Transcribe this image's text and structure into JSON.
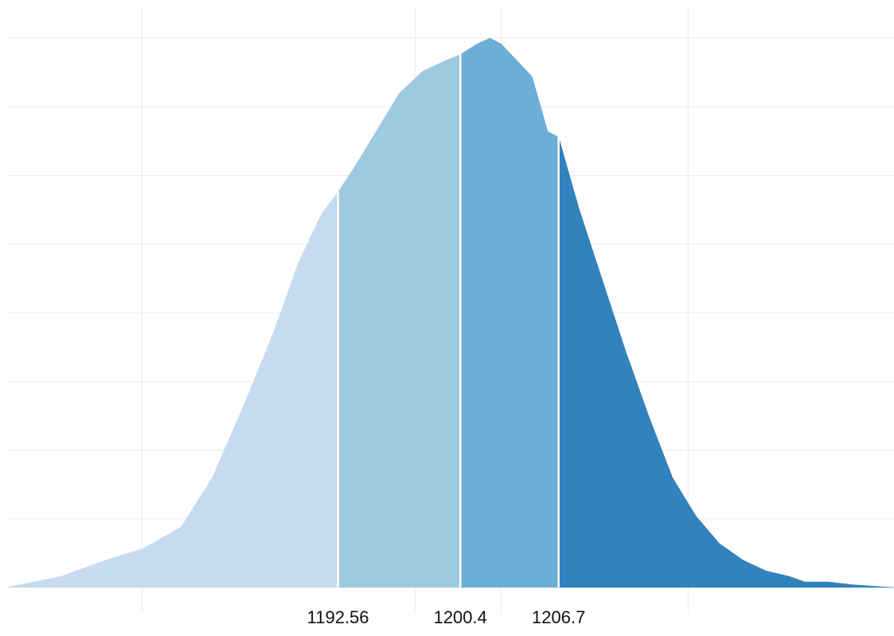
{
  "chart_data": {
    "type": "area",
    "title": "",
    "xlabel": "",
    "ylabel": "",
    "x_range": [
      1171.3,
      1228.2
    ],
    "y_range": [
      0,
      1
    ],
    "grid": true,
    "vertical_grid_x": [
      1180,
      1197.5,
      1203,
      1215
    ],
    "horizontal_grid_y": [
      0.125,
      0.25,
      0.375,
      0.5,
      0.625,
      0.75,
      0.875,
      1.0
    ],
    "breakpoints": [
      {
        "value": 1192.56,
        "label": "1192.56"
      },
      {
        "value": 1200.4,
        "label": "1200.4"
      },
      {
        "value": 1206.7,
        "label": "1206.7"
      }
    ],
    "segments": [
      {
        "from": 1171.3,
        "to": 1192.56,
        "color": "#c6dbef"
      },
      {
        "from": 1192.56,
        "to": 1200.4,
        "color": "#9ecae1"
      },
      {
        "from": 1200.4,
        "to": 1206.7,
        "color": "#6baed6"
      },
      {
        "from": 1206.7,
        "to": 1228.2,
        "color": "#3182bd"
      }
    ],
    "density": {
      "x": [
        1171.3,
        1174.8,
        1177.7,
        1180.0,
        1182.5,
        1184.5,
        1186.5,
        1188.5,
        1190.0,
        1191.5,
        1192.56,
        1193.5,
        1195.0,
        1196.5,
        1198.0,
        1199.5,
        1200.4,
        1201.5,
        1202.3,
        1203.0,
        1204.0,
        1205.0,
        1206.0,
        1206.7,
        1208.0,
        1209.5,
        1211.0,
        1212.5,
        1214.0,
        1215.5,
        1217.0,
        1218.5,
        1220.0,
        1221.5,
        1222.5,
        1224.0,
        1225.5,
        1226.5,
        1227.5,
        1228.2
      ],
      "y": [
        0.0,
        0.02,
        0.05,
        0.07,
        0.11,
        0.2,
        0.33,
        0.47,
        0.59,
        0.68,
        0.72,
        0.76,
        0.83,
        0.9,
        0.94,
        0.96,
        0.97,
        0.99,
        1.0,
        0.99,
        0.96,
        0.93,
        0.83,
        0.82,
        0.69,
        0.56,
        0.43,
        0.31,
        0.2,
        0.13,
        0.08,
        0.05,
        0.03,
        0.02,
        0.01,
        0.01,
        0.005,
        0.003,
        0.001,
        0.0
      ]
    }
  }
}
